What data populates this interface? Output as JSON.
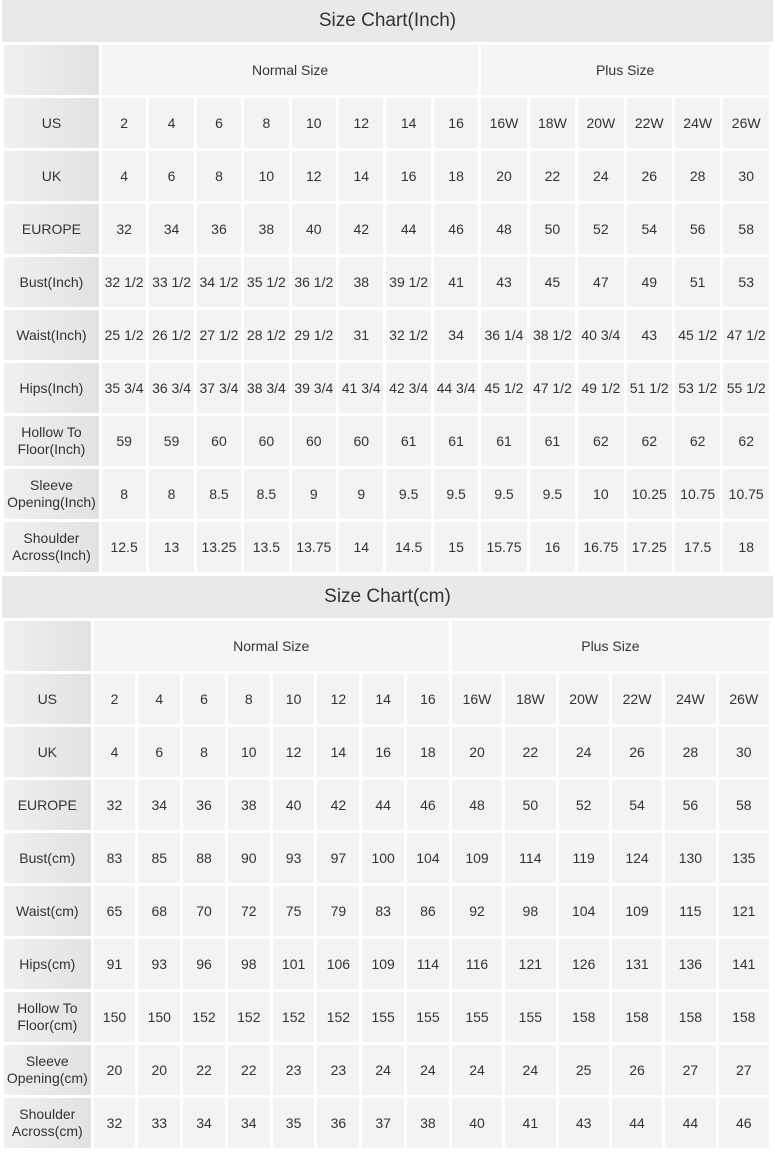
{
  "charts": [
    {
      "id": "inch",
      "title": "Size Chart(Inch)",
      "groups": [
        {
          "label": "Normal Size",
          "span": 8
        },
        {
          "label": "Plus Size",
          "span": 6
        }
      ],
      "rows": [
        {
          "label": "US",
          "values": [
            "2",
            "4",
            "6",
            "8",
            "10",
            "12",
            "14",
            "16",
            "16W",
            "18W",
            "20W",
            "22W",
            "24W",
            "26W"
          ]
        },
        {
          "label": "UK",
          "values": [
            "4",
            "6",
            "8",
            "10",
            "12",
            "14",
            "16",
            "18",
            "20",
            "22",
            "24",
            "26",
            "28",
            "30"
          ]
        },
        {
          "label": "EUROPE",
          "values": [
            "32",
            "34",
            "36",
            "38",
            "40",
            "42",
            "44",
            "46",
            "48",
            "50",
            "52",
            "54",
            "56",
            "58"
          ]
        },
        {
          "label": "Bust(Inch)",
          "values": [
            "32 1/2",
            "33 1/2",
            "34 1/2",
            "35 1/2",
            "36 1/2",
            "38",
            "39 1/2",
            "41",
            "43",
            "45",
            "47",
            "49",
            "51",
            "53"
          ]
        },
        {
          "label": "Waist(Inch)",
          "values": [
            "25 1/2",
            "26 1/2",
            "27 1/2",
            "28 1/2",
            "29 1/2",
            "31",
            "32 1/2",
            "34",
            "36 1/4",
            "38 1/2",
            "40 3/4",
            "43",
            "45 1/2",
            "47 1/2"
          ]
        },
        {
          "label": "Hips(Inch)",
          "values": [
            "35 3/4",
            "36 3/4",
            "37 3/4",
            "38 3/4",
            "39 3/4",
            "41 3/4",
            "42 3/4",
            "44 3/4",
            "45 1/2",
            "47 1/2",
            "49 1/2",
            "51 1/2",
            "53 1/2",
            "55 1/2"
          ]
        },
        {
          "label": "Hollow To Floor(Inch)",
          "values": [
            "59",
            "59",
            "60",
            "60",
            "60",
            "60",
            "61",
            "61",
            "61",
            "61",
            "62",
            "62",
            "62",
            "62"
          ]
        },
        {
          "label": "Sleeve Opening(Inch)",
          "values": [
            "8",
            "8",
            "8.5",
            "8.5",
            "9",
            "9",
            "9.5",
            "9.5",
            "9.5",
            "9.5",
            "10",
            "10.25",
            "10.75",
            "10.75"
          ]
        },
        {
          "label": "Shoulder Across(Inch)",
          "values": [
            "12.5",
            "13",
            "13.25",
            "13.5",
            "13.75",
            "14",
            "14.5",
            "15",
            "15.75",
            "16",
            "16.75",
            "17.25",
            "17.5",
            "18"
          ]
        }
      ]
    },
    {
      "id": "cm",
      "title": "Size Chart(cm)",
      "groups": [
        {
          "label": "Normal Size",
          "span": 8
        },
        {
          "label": "Plus Size",
          "span": 6
        }
      ],
      "rows": [
        {
          "label": "US",
          "values": [
            "2",
            "4",
            "6",
            "8",
            "10",
            "12",
            "14",
            "16",
            "16W",
            "18W",
            "20W",
            "22W",
            "24W",
            "26W"
          ]
        },
        {
          "label": "UK",
          "values": [
            "4",
            "6",
            "8",
            "10",
            "12",
            "14",
            "16",
            "18",
            "20",
            "22",
            "24",
            "26",
            "28",
            "30"
          ]
        },
        {
          "label": "EUROPE",
          "values": [
            "32",
            "34",
            "36",
            "38",
            "40",
            "42",
            "44",
            "46",
            "48",
            "50",
            "52",
            "54",
            "56",
            "58"
          ]
        },
        {
          "label": "Bust(cm)",
          "values": [
            "83",
            "85",
            "88",
            "90",
            "93",
            "97",
            "100",
            "104",
            "109",
            "114",
            "119",
            "124",
            "130",
            "135"
          ]
        },
        {
          "label": "Waist(cm)",
          "values": [
            "65",
            "68",
            "70",
            "72",
            "75",
            "79",
            "83",
            "86",
            "92",
            "98",
            "104",
            "109",
            "115",
            "121"
          ]
        },
        {
          "label": "Hips(cm)",
          "values": [
            "91",
            "93",
            "96",
            "98",
            "101",
            "106",
            "109",
            "114",
            "116",
            "121",
            "126",
            "131",
            "136",
            "141"
          ]
        },
        {
          "label": "Hollow To Floor(cm)",
          "values": [
            "150",
            "150",
            "152",
            "152",
            "152",
            "152",
            "155",
            "155",
            "155",
            "155",
            "158",
            "158",
            "158",
            "158"
          ]
        },
        {
          "label": "Sleeve Opening(cm)",
          "values": [
            "20",
            "20",
            "22",
            "22",
            "23",
            "23",
            "24",
            "24",
            "24",
            "24",
            "25",
            "26",
            "27",
            "27"
          ]
        },
        {
          "label": "Shoulder Across(cm)",
          "values": [
            "32",
            "33",
            "34",
            "34",
            "35",
            "36",
            "37",
            "38",
            "40",
            "41",
            "43",
            "44",
            "44",
            "46"
          ]
        }
      ]
    }
  ]
}
